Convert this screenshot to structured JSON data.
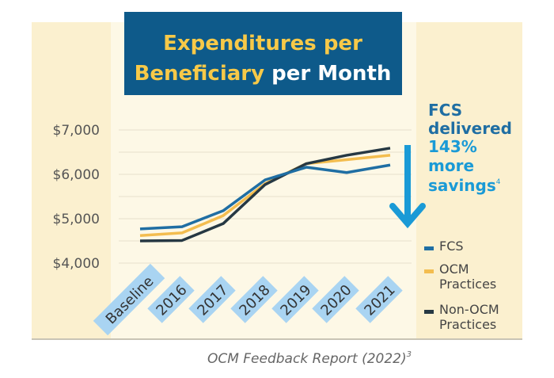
{
  "title": {
    "line1": "Expenditures per",
    "line2_highlight": "Beneficiary",
    "line2_rest": " per Month"
  },
  "callout": {
    "line1": "FCS",
    "line2": "delivered",
    "line3": "143%",
    "line4": "more",
    "line5": "savings",
    "footnote": "4"
  },
  "source": {
    "text": "OCM Feedback Report (2022)",
    "footnote": "3"
  },
  "colors": {
    "FCS": "#1f6ea3",
    "OCM Practices": "#f3bd4f",
    "Non-OCM Practices": "#263843",
    "title_bg": "#0e5a8a",
    "title_highlight": "#f7c948",
    "callout": "#1a9ad6",
    "label_bg": "#a9d4f2"
  },
  "chart_data": {
    "type": "line",
    "categories": [
      "Baseline",
      "2016",
      "2017",
      "2018",
      "2019",
      "2020",
      "2021"
    ],
    "ylim": [
      4000,
      7000
    ],
    "yticks": [
      4000,
      5000,
      6000,
      7000
    ],
    "ytick_labels": [
      "$4,000",
      "$5,000",
      "$6,000",
      "$7,000"
    ],
    "grid": true,
    "legend": "right",
    "series": [
      {
        "name": "FCS",
        "values": [
          4770,
          4820,
          5180,
          5875,
          6160,
          6040,
          6210
        ]
      },
      {
        "name": "OCM Practices",
        "values": [
          4620,
          4680,
          5070,
          5790,
          6240,
          6330,
          6430
        ]
      },
      {
        "name": "Non-OCM Practices",
        "values": [
          4500,
          4510,
          4890,
          5770,
          6240,
          6430,
          6590
        ]
      }
    ],
    "legend_labels": [
      [
        "FCS"
      ],
      [
        "OCM",
        "Practices"
      ],
      [
        "Non-OCM",
        "Practices"
      ]
    ]
  }
}
